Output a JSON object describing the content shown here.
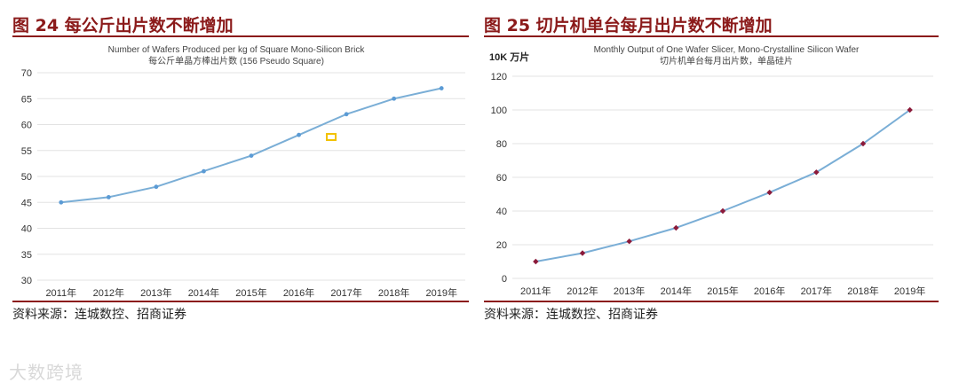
{
  "left_panel": {
    "figure_title": "图 24 每公斤出片数不断增加",
    "source": "资料来源：连城数控、招商证券"
  },
  "right_panel": {
    "figure_title": "图 25 切片机单台每月出片数不断增加",
    "source": "资料来源：连城数控、招商证券"
  },
  "watermark": "大数跨境",
  "colors": {
    "accent": "#8b1a1a",
    "line": "#7aaed6",
    "marker_left": "#5b9bd5",
    "marker_right": "#8b1a3a",
    "legend_marker": "#f2c200"
  },
  "chart_data": [
    {
      "type": "line",
      "title": "Number of Wafers Produced per kg of Square Mono-Silicon Brick",
      "subtitle": "每公斤单晶方棒出片数 (156 Pseudo Square)",
      "unit_label": "",
      "categories": [
        "2011年",
        "2012年",
        "2013年",
        "2014年",
        "2015年",
        "2016年",
        "2017年",
        "2018年",
        "2019年"
      ],
      "series": [
        {
          "values": [
            45,
            46,
            48,
            51,
            54,
            58,
            62,
            65,
            67
          ]
        }
      ],
      "ylim": [
        30,
        70
      ],
      "yticks": [
        30,
        35,
        40,
        45,
        50,
        55,
        60,
        65,
        70
      ],
      "grid": true
    },
    {
      "type": "line",
      "title": "Monthly Output of One Wafer Slicer, Mono-Crystalline Silicon Wafer",
      "subtitle": "切片机单台每月出片数，单晶硅片",
      "unit_label": "10K 万片",
      "categories": [
        "2011年",
        "2012年",
        "2013年",
        "2014年",
        "2015年",
        "2016年",
        "2017年",
        "2018年",
        "2019年"
      ],
      "series": [
        {
          "values": [
            10,
            15,
            22,
            30,
            40,
            51,
            63,
            80,
            100
          ]
        }
      ],
      "ylim": [
        0,
        120
      ],
      "yticks": [
        0,
        20,
        40,
        60,
        80,
        100,
        120
      ],
      "grid": true
    }
  ]
}
